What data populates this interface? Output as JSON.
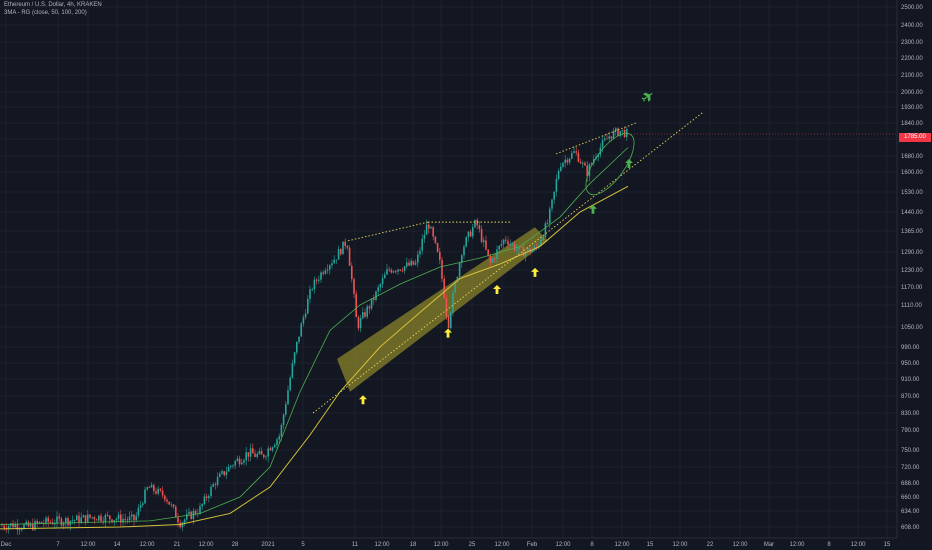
{
  "header": {
    "symbol_line": "Ethereum / U.S. Dollar, 4h, KRAKEN",
    "indicator_line": "3MA - RG (close, 50, 100, 200)"
  },
  "colors": {
    "background": "#131722",
    "up_candle": "#26a69a",
    "down_candle": "#ef5350",
    "ma_fast": "#4caf50",
    "ma_mid": "#2e7d32",
    "ma_slow": "#d4c23a",
    "channel": "#b5a92b",
    "trendline": "#e9d85a",
    "arrow_yellow": "#ffeb3b",
    "arrow_green": "#4caf50",
    "price_tag": "#f23645"
  },
  "icons": [
    "arrow-up-icon",
    "airplane-icon"
  ],
  "chart_data": {
    "type": "candlestick",
    "y_ticks": [
      "2500.00",
      "2400.00",
      "2300.00",
      "2200.00",
      "2100.00",
      "2000.00",
      "1930.00",
      "1840.00",
      "1760.00",
      "1680.00",
      "1600.00",
      "1530.00",
      "1440.00",
      "1365.00",
      "1290.00",
      "1230.00",
      "1170.00",
      "1110.00",
      "1050.00",
      "990.00",
      "950.00",
      "910.00",
      "870.00",
      "830.00",
      "790.00",
      "750.00",
      "720.00",
      "688.00",
      "660.00",
      "634.00",
      "608.00"
    ],
    "x_ticks": [
      "Dec",
      "7",
      "12:00",
      "14",
      "12:00",
      "21",
      "12:00",
      "28",
      "2021",
      "5",
      "11",
      "12:00",
      "18",
      "12:00",
      "25",
      "12:00",
      "Feb",
      "12:00",
      "8",
      "12:00",
      "15",
      "12:00",
      "22",
      "12:00",
      "Mar",
      "12:00",
      "8",
      "12:00",
      "15"
    ],
    "last_price": "1785.00",
    "anchors": [
      {
        "t": 0,
        "p": 610
      },
      {
        "t": 14,
        "p": 612
      },
      {
        "t": 28,
        "p": 608
      },
      {
        "t": 42,
        "p": 615
      },
      {
        "t": 60,
        "p": 618
      },
      {
        "t": 78,
        "p": 620
      },
      {
        "t": 95,
        "p": 625
      },
      {
        "t": 115,
        "p": 622
      },
      {
        "t": 135,
        "p": 620
      },
      {
        "t": 148,
        "p": 680
      },
      {
        "t": 165,
        "p": 662
      },
      {
        "t": 180,
        "p": 615
      },
      {
        "t": 200,
        "p": 638
      },
      {
        "t": 215,
        "p": 690
      },
      {
        "t": 232,
        "p": 725
      },
      {
        "t": 248,
        "p": 745
      },
      {
        "t": 262,
        "p": 738
      },
      {
        "t": 280,
        "p": 780
      },
      {
        "t": 293,
        "p": 950
      },
      {
        "t": 300,
        "p": 1040
      },
      {
        "t": 312,
        "p": 1170
      },
      {
        "t": 325,
        "p": 1240
      },
      {
        "t": 335,
        "p": 1270
      },
      {
        "t": 347,
        "p": 1330
      },
      {
        "t": 357,
        "p": 1050
      },
      {
        "t": 372,
        "p": 1120
      },
      {
        "t": 388,
        "p": 1230
      },
      {
        "t": 402,
        "p": 1240
      },
      {
        "t": 416,
        "p": 1250
      },
      {
        "t": 428,
        "p": 1400
      },
      {
        "t": 440,
        "p": 1250
      },
      {
        "t": 448,
        "p": 1050
      },
      {
        "t": 462,
        "p": 1300
      },
      {
        "t": 476,
        "p": 1400
      },
      {
        "t": 490,
        "p": 1250
      },
      {
        "t": 505,
        "p": 1340
      },
      {
        "t": 520,
        "p": 1290
      },
      {
        "t": 536,
        "p": 1300
      },
      {
        "t": 548,
        "p": 1400
      },
      {
        "t": 560,
        "p": 1640
      },
      {
        "t": 575,
        "p": 1700
      },
      {
        "t": 587,
        "p": 1600
      },
      {
        "t": 597,
        "p": 1700
      },
      {
        "t": 610,
        "p": 1780
      },
      {
        "t": 620,
        "p": 1800
      },
      {
        "t": 628,
        "p": 1785
      }
    ],
    "ma_fast": [
      {
        "t": 0,
        "p": 612
      },
      {
        "t": 150,
        "p": 618
      },
      {
        "t": 200,
        "p": 630
      },
      {
        "t": 240,
        "p": 660
      },
      {
        "t": 270,
        "p": 720
      },
      {
        "t": 300,
        "p": 880
      },
      {
        "t": 330,
        "p": 1040
      },
      {
        "t": 360,
        "p": 1110
      },
      {
        "t": 400,
        "p": 1180
      },
      {
        "t": 440,
        "p": 1240
      },
      {
        "t": 480,
        "p": 1270
      },
      {
        "t": 520,
        "p": 1310
      },
      {
        "t": 560,
        "p": 1420
      },
      {
        "t": 590,
        "p": 1560
      },
      {
        "t": 628,
        "p": 1720
      }
    ],
    "ma_slow": [
      {
        "t": 0,
        "p": 605
      },
      {
        "t": 120,
        "p": 608
      },
      {
        "t": 180,
        "p": 612
      },
      {
        "t": 230,
        "p": 630
      },
      {
        "t": 270,
        "p": 680
      },
      {
        "t": 310,
        "p": 780
      },
      {
        "t": 340,
        "p": 880
      },
      {
        "t": 380,
        "p": 990
      },
      {
        "t": 420,
        "p": 1090
      },
      {
        "t": 460,
        "p": 1200
      },
      {
        "t": 500,
        "p": 1250
      },
      {
        "t": 540,
        "p": 1310
      },
      {
        "t": 580,
        "p": 1440
      },
      {
        "t": 628,
        "p": 1550
      }
    ],
    "channel": [
      {
        "t": 337,
        "p": 960
      },
      {
        "t": 535,
        "p": 1380
      },
      {
        "t": 548,
        "p": 1330
      },
      {
        "t": 350,
        "p": 880
      }
    ],
    "trendlines": [
      {
        "from": {
          "t": 313,
          "p": 830
        },
        "to": {
          "t": 703,
          "p": 1900
        }
      },
      {
        "from": {
          "t": 348,
          "p": 1330
        },
        "to": {
          "t": 428,
          "p": 1400
        }
      },
      {
        "from": {
          "t": 428,
          "p": 1400
        },
        "to": {
          "t": 512,
          "p": 1400
        }
      },
      {
        "from": {
          "t": 556,
          "p": 1690
        },
        "to": {
          "t": 636,
          "p": 1840
        }
      }
    ],
    "arrows_yellow": [
      {
        "t": 363,
        "p": 860
      },
      {
        "t": 448,
        "p": 1030
      },
      {
        "t": 497,
        "p": 1160
      },
      {
        "t": 535,
        "p": 1220
      }
    ],
    "arrows_green": [
      {
        "t": 593,
        "p": 1450
      },
      {
        "t": 629,
        "p": 1640
      }
    ],
    "airplane": {
      "t": 648,
      "p": 1980
    }
  }
}
